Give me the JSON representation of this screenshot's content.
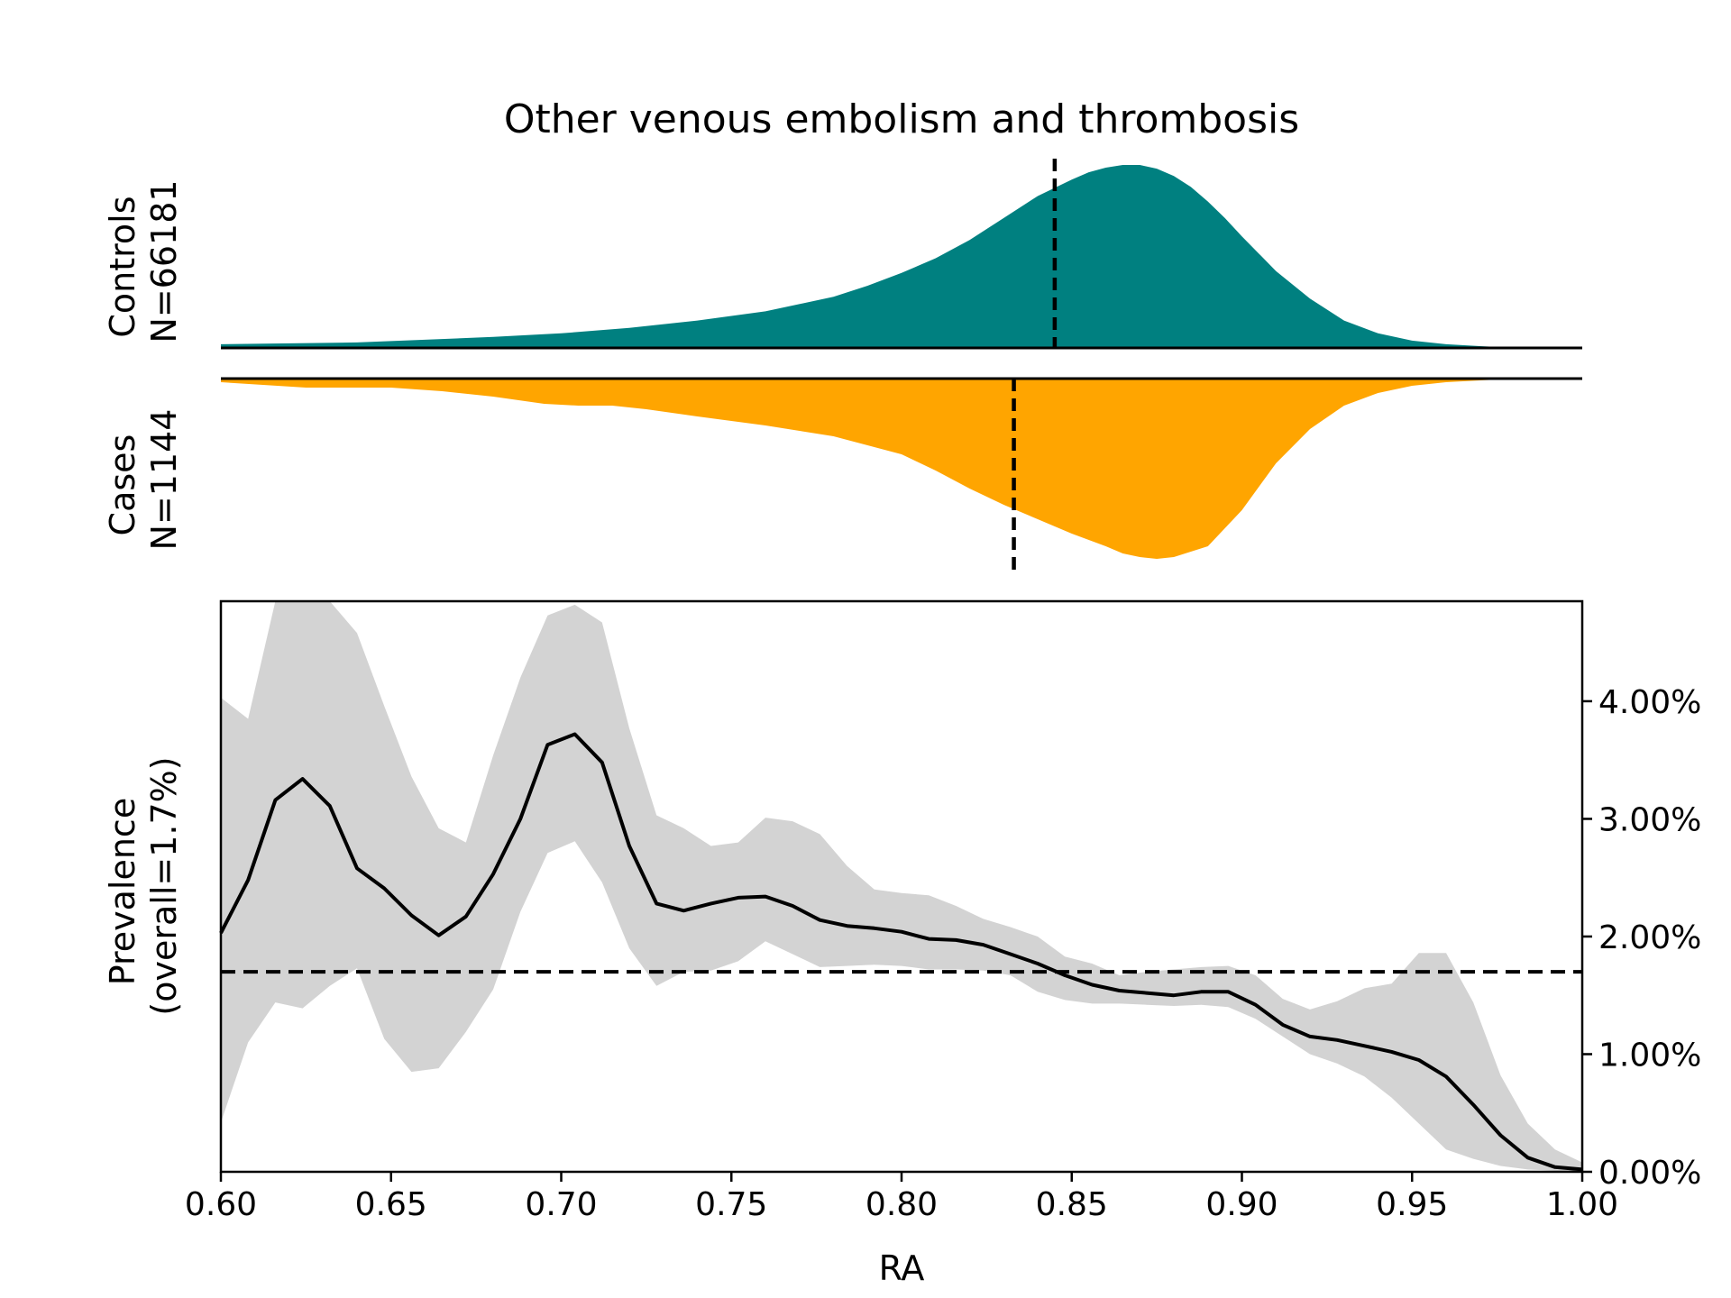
{
  "chart_data": [
    {
      "type": "area",
      "panel": "controls-density",
      "title": "Other venous embolism and thrombosis",
      "ylabel": [
        "Controls",
        "N=66181"
      ],
      "color": "#008080",
      "xlim": [
        0.6,
        1.0
      ],
      "mean_line_x": 0.845,
      "x": [
        0.6,
        0.64,
        0.68,
        0.7,
        0.72,
        0.74,
        0.76,
        0.78,
        0.79,
        0.8,
        0.81,
        0.82,
        0.83,
        0.84,
        0.85,
        0.855,
        0.86,
        0.865,
        0.87,
        0.875,
        0.88,
        0.885,
        0.89,
        0.895,
        0.9,
        0.91,
        0.92,
        0.93,
        0.94,
        0.95,
        0.96,
        0.97,
        0.98,
        1.0
      ],
      "density": [
        0.02,
        0.03,
        0.06,
        0.08,
        0.11,
        0.15,
        0.2,
        0.28,
        0.34,
        0.41,
        0.49,
        0.59,
        0.71,
        0.83,
        0.92,
        0.96,
        0.985,
        1.0,
        1.0,
        0.98,
        0.94,
        0.88,
        0.8,
        0.71,
        0.61,
        0.42,
        0.27,
        0.15,
        0.08,
        0.04,
        0.02,
        0.01,
        0.0,
        0.0
      ]
    },
    {
      "type": "area",
      "panel": "cases-density",
      "ylabel": [
        "Cases",
        "N=1144"
      ],
      "color": "#ffa500",
      "xlim": [
        0.6,
        1.0
      ],
      "mean_line_x": 0.833,
      "x": [
        0.6,
        0.625,
        0.65,
        0.665,
        0.68,
        0.695,
        0.705,
        0.715,
        0.725,
        0.74,
        0.76,
        0.78,
        0.8,
        0.81,
        0.82,
        0.83,
        0.84,
        0.85,
        0.86,
        0.865,
        0.87,
        0.875,
        0.88,
        0.89,
        0.9,
        0.91,
        0.92,
        0.93,
        0.94,
        0.95,
        0.96,
        0.97,
        0.98,
        1.0
      ],
      "density": [
        0.02,
        0.05,
        0.05,
        0.07,
        0.1,
        0.14,
        0.15,
        0.15,
        0.17,
        0.21,
        0.26,
        0.32,
        0.42,
        0.51,
        0.61,
        0.7,
        0.78,
        0.86,
        0.93,
        0.97,
        0.99,
        1.0,
        0.99,
        0.93,
        0.73,
        0.47,
        0.28,
        0.15,
        0.08,
        0.04,
        0.02,
        0.01,
        0.0,
        0.0
      ]
    },
    {
      "type": "line",
      "panel": "prevalence",
      "xlabel": "RA",
      "ylabel": [
        "Prevalence",
        "(overall=1.7%)"
      ],
      "xlim": [
        0.6,
        1.0
      ],
      "ylim": [
        0.0,
        4.85
      ],
      "x_ticks": [
        0.6,
        0.65,
        0.7,
        0.75,
        0.8,
        0.85,
        0.9,
        0.95,
        1.0
      ],
      "x_tick_labels": [
        "0.60",
        "0.65",
        "0.70",
        "0.75",
        "0.80",
        "0.85",
        "0.90",
        "0.95",
        "1.00"
      ],
      "y_ticks": [
        0.0,
        1.0,
        2.0,
        3.0,
        4.0
      ],
      "y_tick_labels": [
        "0.00%",
        "1.00%",
        "2.00%",
        "3.00%",
        "4.00%"
      ],
      "y_axis_side": "right",
      "overall_prevalence": 1.7,
      "band_color": "#d3d3d3",
      "x": [
        0.6,
        0.608,
        0.616,
        0.624,
        0.632,
        0.64,
        0.648,
        0.656,
        0.664,
        0.672,
        0.68,
        0.688,
        0.696,
        0.704,
        0.712,
        0.72,
        0.728,
        0.736,
        0.744,
        0.752,
        0.76,
        0.768,
        0.776,
        0.784,
        0.792,
        0.8,
        0.808,
        0.816,
        0.824,
        0.832,
        0.84,
        0.848,
        0.856,
        0.864,
        0.872,
        0.88,
        0.888,
        0.896,
        0.904,
        0.912,
        0.92,
        0.928,
        0.936,
        0.944,
        0.952,
        0.96,
        0.968,
        0.976,
        0.984,
        0.992,
        1.0
      ],
      "prevalence": [
        2.03,
        2.48,
        3.16,
        3.34,
        3.11,
        2.58,
        2.41,
        2.18,
        2.01,
        2.17,
        2.53,
        3.0,
        3.63,
        3.72,
        3.48,
        2.77,
        2.28,
        2.22,
        2.28,
        2.33,
        2.34,
        2.26,
        2.14,
        2.09,
        2.07,
        2.04,
        1.98,
        1.97,
        1.93,
        1.85,
        1.77,
        1.67,
        1.59,
        1.54,
        1.52,
        1.5,
        1.53,
        1.53,
        1.42,
        1.25,
        1.15,
        1.12,
        1.07,
        1.02,
        0.95,
        0.81,
        0.57,
        0.31,
        0.12,
        0.04,
        0.02
      ],
      "ci_upper": [
        4.03,
        3.85,
        5.0,
        5.0,
        5.0,
        4.58,
        3.96,
        3.36,
        2.92,
        2.8,
        3.54,
        4.2,
        4.73,
        4.82,
        4.67,
        3.77,
        3.03,
        2.92,
        2.77,
        2.8,
        3.01,
        2.98,
        2.87,
        2.6,
        2.4,
        2.37,
        2.35,
        2.26,
        2.15,
        2.08,
        2.0,
        1.83,
        1.77,
        1.67,
        1.7,
        1.72,
        1.74,
        1.75,
        1.67,
        1.47,
        1.38,
        1.45,
        1.56,
        1.6,
        1.86,
        1.86,
        1.44,
        0.82,
        0.41,
        0.19,
        0.08
      ],
      "ci_lower": [
        0.42,
        1.1,
        1.44,
        1.39,
        1.58,
        1.73,
        1.13,
        0.85,
        0.88,
        1.19,
        1.55,
        2.21,
        2.71,
        2.81,
        2.46,
        1.9,
        1.58,
        1.7,
        1.71,
        1.79,
        1.96,
        1.85,
        1.74,
        1.75,
        1.76,
        1.75,
        1.72,
        1.72,
        1.71,
        1.67,
        1.53,
        1.46,
        1.43,
        1.43,
        1.42,
        1.41,
        1.42,
        1.4,
        1.3,
        1.15,
        1.0,
        0.92,
        0.81,
        0.63,
        0.41,
        0.19,
        0.11,
        0.05,
        0.02,
        0.01,
        0.0
      ]
    }
  ]
}
